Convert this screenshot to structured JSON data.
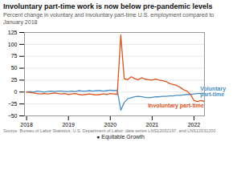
{
  "chart_data": {
    "type": "line",
    "title": "Involuntary part-time work is now below pre-pandemic levels",
    "subtitle": "Percent change in voluntary and involuntary part-time U.S. employment compared to\nJanuary 2018",
    "source": "Source: Bureau of Labor Statistics, U.S. Department of Labor, data series LNS12032197, and LNS12031200",
    "footer": "●  Equitable Growth",
    "x": [
      2018,
      2018.0833333333333,
      2018.1666666666667,
      2018.25,
      2018.3333333333333,
      2018.4166666666667,
      2018.5,
      2018.5833333333333,
      2018.6666666666667,
      2018.75,
      2018.8333333333333,
      2018.9166666666667,
      2019,
      2019.0833333333333,
      2019.1666666666667,
      2019.25,
      2019.3333333333333,
      2019.4166666666667,
      2019.5,
      2019.5833333333333,
      2019.6666666666667,
      2019.75,
      2019.8333333333333,
      2019.9166666666667,
      2020,
      2020.0833333333333,
      2020.1666666666667,
      2020.25,
      2020.3333333333333,
      2020.4166666666667,
      2020.5,
      2020.5833333333333,
      2020.6666666666667,
      2020.75,
      2020.8333333333333,
      2020.9166666666667,
      2021,
      2021.0833333333333,
      2021.1666666666667,
      2021.25,
      2021.3333333333333,
      2021.4166666666667,
      2021.5,
      2021.5833333333333,
      2021.6666666666667,
      2021.75,
      2021.8333333333333,
      2021.9166666666667,
      2022,
      2022.0833333333333,
      2022.1666666666667,
      2022.25
    ],
    "series": [
      {
        "color": "#4a90c4",
        "values": [
          0,
          1,
          0,
          2,
          1,
          0,
          1,
          2,
          1,
          2,
          2,
          1,
          1,
          2,
          1,
          3,
          2,
          2,
          3,
          2,
          3,
          3,
          2,
          3,
          4,
          3,
          4,
          -38,
          -22,
          -14,
          -12,
          -10,
          -9,
          -10,
          -11,
          -12,
          -11,
          -10,
          -10,
          -9,
          -9,
          -8,
          -8,
          -7,
          -7,
          -6,
          -5,
          -5,
          -4,
          -3,
          -3,
          -2
        ]
      },
      {
        "color": "#d9541e",
        "values": [
          0,
          -1,
          -2,
          -3,
          -4,
          -3,
          -4,
          -3,
          -2,
          -3,
          -4,
          -3,
          -5,
          -4,
          -3,
          -5,
          -6,
          -5,
          -4,
          -5,
          -6,
          -5,
          -4,
          -5,
          -3,
          -4,
          -5,
          120,
          28,
          26,
          32,
          28,
          26,
          30,
          27,
          26,
          25,
          27,
          25,
          24,
          22,
          18,
          16,
          14,
          10,
          5,
          2,
          -5,
          -18,
          -20,
          -18,
          -20
        ]
      }
    ],
    "annotations": [
      {
        "text": "Voluntary\npart-time",
        "x": 2022.15,
        "y": 1,
        "color": "#4a90c4"
      },
      {
        "text": "Involuntary part-time",
        "x": 2020.9,
        "y": -29,
        "color": "#d9541e"
      }
    ],
    "xlim": [
      2017.95,
      2022.25
    ],
    "xticks": [
      2018,
      2019,
      2020,
      2021,
      2022
    ],
    "ylim": [
      -50,
      125
    ],
    "yticks": [
      -50,
      -25,
      0,
      25,
      50,
      75,
      100,
      125
    ],
    "grid": true
  }
}
